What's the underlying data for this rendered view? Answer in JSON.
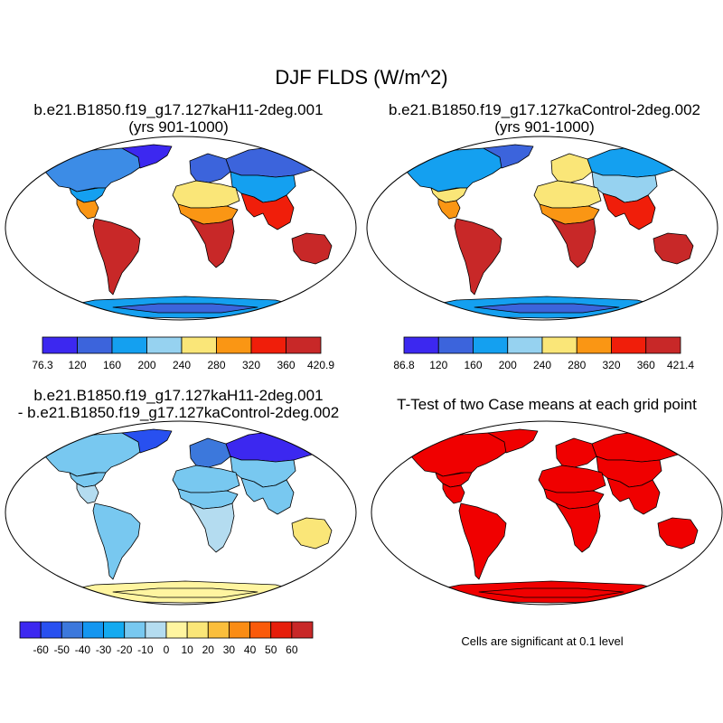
{
  "title": "DJF FLDS (W/m^2)",
  "panels": [
    {
      "title": "b.e21.B1850.f19_g17.127kaH11-2deg.001",
      "subtitle": "(yrs 901-1000)"
    },
    {
      "title": "b.e21.B1850.f19_g17.127kaControl-2deg.002",
      "subtitle": "(yrs 901-1000)"
    },
    {
      "title": "b.e21.B1850.f19_g17.127kaH11-2deg.001",
      "subtitle": "- b.e21.B1850.f19_g17.127kaControl-2deg.002"
    },
    {
      "title": "T-Test of two Case means at each grid point"
    }
  ],
  "significance_note": "Cells are significant at 0.1 level",
  "colorbars": [
    {
      "labels": [
        "76.3",
        "120",
        "160",
        "200",
        "240",
        "280",
        "320",
        "360",
        "420.9"
      ],
      "colors": [
        "#3c28f0",
        "#3c64dc",
        "#14a0f0",
        "#96d2f0",
        "#fae678",
        "#fa9614",
        "#f01e0a",
        "#c82828"
      ]
    },
    {
      "labels": [
        "86.8",
        "120",
        "160",
        "200",
        "240",
        "280",
        "320",
        "360",
        "421.4"
      ],
      "colors": [
        "#3c28f0",
        "#3c64dc",
        "#14a0f0",
        "#96d2f0",
        "#fae678",
        "#fa9614",
        "#f01e0a",
        "#c82828"
      ]
    },
    {
      "labels": [
        "-60",
        "-50",
        "-40",
        "-30",
        "-20",
        "-10",
        "0",
        "10",
        "20",
        "30",
        "40",
        "50",
        "60"
      ],
      "colors": [
        "#3c28f0",
        "#2850f0",
        "#3c78dc",
        "#1496f0",
        "#14aaf0",
        "#78c8f0",
        "#b4dcf0",
        "#fff5a0",
        "#fae678",
        "#fabe3c",
        "#fa8c14",
        "#fa5a0a",
        "#e61e0a",
        "#c82828"
      ]
    }
  ],
  "map_fields": {
    "case1": {
      "north_america": "#3c8ce6",
      "greenland": "#3c28f0",
      "us_south": "#14a0f0",
      "mexico": "#fa9614",
      "south_america": "#c82828",
      "europe": "#3c64dc",
      "siberia": "#3c64dc",
      "central_asia": "#14a0f0",
      "sahara": "#fae678",
      "sahel": "#fa9614",
      "africa_south": "#c82828",
      "india_se_asia": "#f01e0a",
      "australia": "#c82828",
      "antarctica": "#14a0f0",
      "antarctica_interior": "#3c64dc"
    },
    "case2": {
      "north_america": "#14a0f0",
      "greenland": "#3c64dc",
      "us_south": "#fae678",
      "mexico": "#fa9614",
      "south_america": "#c82828",
      "europe": "#fae678",
      "siberia": "#14a0f0",
      "central_asia": "#96d2f0",
      "sahara": "#fae678",
      "sahel": "#fa9614",
      "africa_south": "#c82828",
      "india_se_asia": "#f01e0a",
      "australia": "#c82828",
      "antarctica": "#14a0f0",
      "antarctica_interior": "#3c64dc"
    },
    "difference": {
      "north_america": "#78c8f0",
      "greenland": "#2850f0",
      "us_south": "#78c8f0",
      "mexico": "#b4dcf0",
      "south_america": "#78c8f0",
      "europe": "#3c78dc",
      "siberia": "#3c28f0",
      "central_asia": "#78c8f0",
      "sahara": "#78c8f0",
      "sahel": "#78c8f0",
      "africa_south": "#b4dcf0",
      "india_se_asia": "#78c8f0",
      "australia": "#fae678",
      "antarctica": "#fff5a0",
      "antarctica_interior": "#fff5a0"
    },
    "ttest": {
      "north_america": "#f00000",
      "greenland": "#f00000",
      "us_south": "#f00000",
      "mexico": "#f00000",
      "south_america": "#f00000",
      "europe": "#f00000",
      "siberia": "#f00000",
      "central_asia": "#f00000",
      "sahara": "#f00000",
      "sahel": "#f00000",
      "africa_south": "#f00000",
      "india_se_asia": "#f00000",
      "australia": "#f00000",
      "antarctica": "#f00000",
      "antarctica_interior": "#f00000"
    }
  }
}
